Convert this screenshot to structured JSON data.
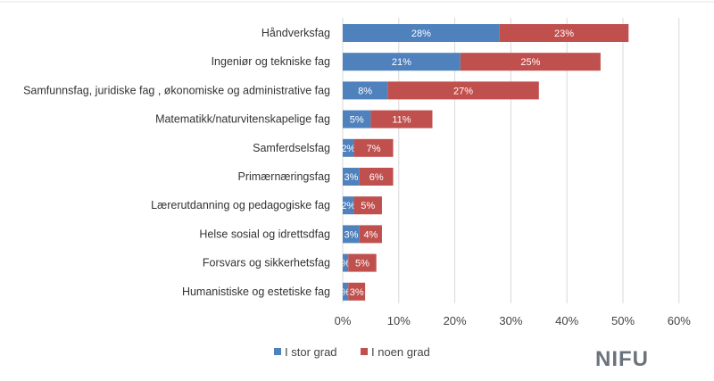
{
  "chart_data": {
    "type": "bar",
    "orientation": "horizontal",
    "stacked": true,
    "title": "",
    "xlabel": "",
    "ylabel": "",
    "categories": [
      "Håndverksfag",
      "Ingeniør og tekniske fag",
      "Samfunnsfag, juridiske fag , økonomiske og administrative fag",
      "Matematikk/naturvitenskapelige fag",
      "Samferdselsfag",
      "Primærnæringsfag",
      "Lærerutdanning og pedagogiske fag",
      "Helse sosial og idrettsdfag",
      "Forsvars og sikkerhetsfag",
      "Humanistiske og estetiske fag"
    ],
    "series": [
      {
        "name": "I stor grad",
        "color": "#4f81bd",
        "values": [
          28,
          21,
          8,
          5,
          2,
          3,
          2,
          3,
          1,
          1
        ],
        "labels": [
          "28%",
          "21%",
          "8%",
          "5%",
          "2%",
          "3%",
          "2%",
          "3%",
          "%",
          "%"
        ]
      },
      {
        "name": "I noen grad",
        "color": "#c0504d",
        "values": [
          23,
          25,
          27,
          11,
          7,
          6,
          5,
          4,
          5,
          3
        ],
        "labels": [
          "23%",
          "25%",
          "27%",
          "11%",
          "7%",
          "6%",
          "5%",
          "4%",
          "5%",
          "3%"
        ]
      }
    ],
    "xlim": [
      0,
      60
    ],
    "xticks": [
      "0%",
      "10%",
      "20%",
      "30%",
      "40%",
      "50%",
      "60%"
    ],
    "grid": true,
    "legend": "bottom-left"
  },
  "branding": {
    "logo_text": "NIFU",
    "logo_color": "#6a737b"
  },
  "colors": {
    "gridline": "#d9d9d9"
  }
}
